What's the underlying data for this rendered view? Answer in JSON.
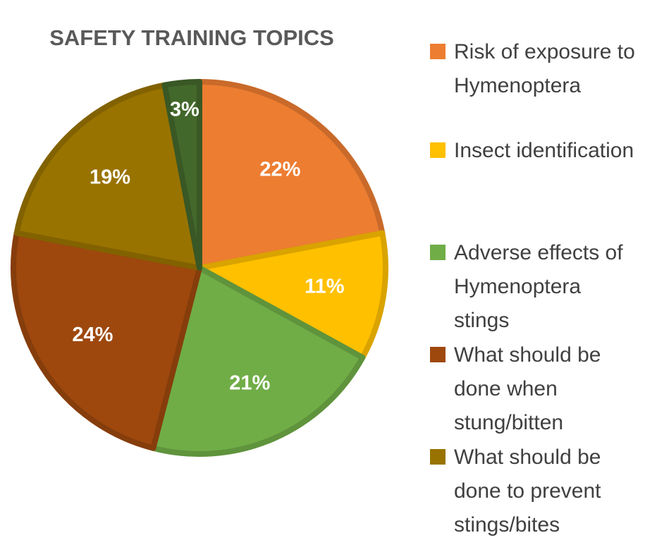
{
  "chart_data": {
    "type": "pie",
    "title": "SAFETY TRAINING TOPICS",
    "categories": [
      "Risk of exposure to Hymenoptera",
      "Insect identification",
      "Adverse effects of Hymenoptera stings",
      "What should be done when stung/bitten",
      "What should be done to prevent stings/bites",
      null
    ],
    "values": [
      22,
      11,
      21,
      24,
      19,
      3
    ],
    "value_labels": [
      "22%",
      "11%",
      "21%",
      "24%",
      "19%",
      "3%"
    ],
    "colors": [
      "#ed7d31",
      "#ffc000",
      "#70ad47",
      "#9e480e",
      "#997300",
      "#43682b"
    ],
    "legend": "right"
  }
}
